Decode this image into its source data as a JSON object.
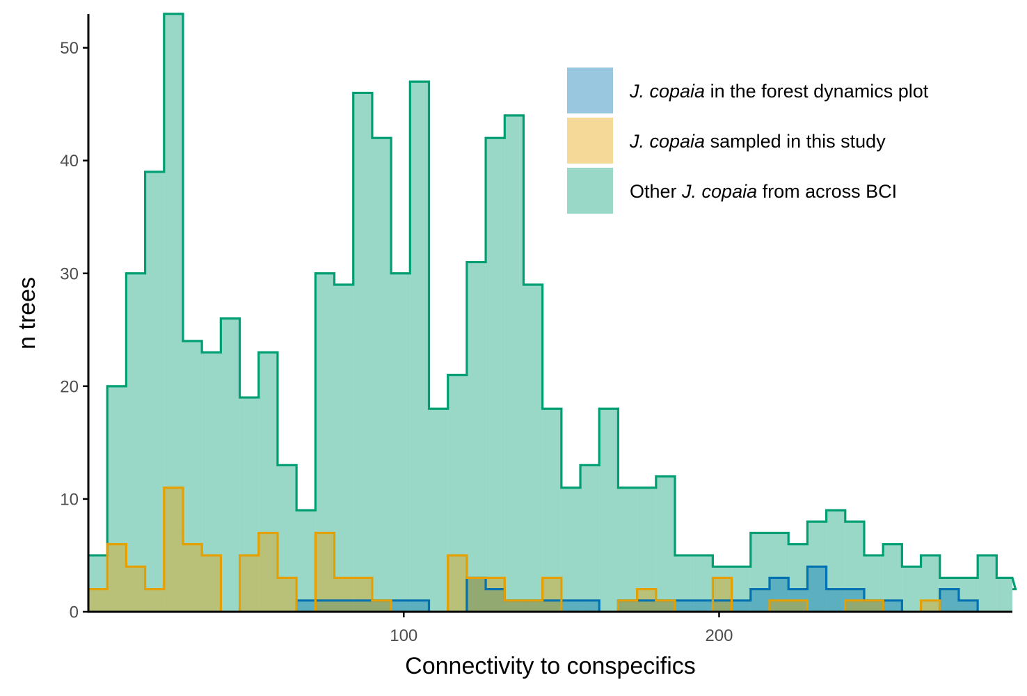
{
  "chart_data": {
    "type": "histogram",
    "xlabel": "Connectivity to conspecifics",
    "ylabel": "n trees",
    "xlim": [
      0,
      293
    ],
    "ylim": [
      0,
      53
    ],
    "bin_width": 6,
    "bin_start": 0,
    "xticks": [
      100,
      200
    ],
    "yticks": [
      0,
      10,
      20,
      30,
      40,
      50
    ],
    "grid": false,
    "legend_position": "top-right",
    "series": [
      {
        "name_italic": "J. copaia",
        "name_rest": " from across BCI",
        "name_prefix": "Other  ",
        "fill": "#009E73",
        "fill_opacity": 0.4,
        "stroke": "#009E73",
        "values": [
          5,
          20,
          30,
          39,
          53,
          24,
          23,
          26,
          19,
          23,
          13,
          9,
          30,
          29,
          46,
          42,
          30,
          47,
          18,
          21,
          31,
          42,
          44,
          29,
          18,
          11,
          13,
          18,
          11,
          11,
          12,
          5,
          5,
          4,
          4,
          7,
          7,
          6,
          8,
          9,
          8,
          5,
          6,
          4,
          5,
          3,
          3,
          5,
          3,
          2
        ]
      },
      {
        "name_italic": "J. copaia",
        "name_rest": " in the forest dynamics plot",
        "name_prefix": "",
        "fill": "#0072B2",
        "fill_opacity": 0.4,
        "stroke": "#0072B2",
        "values": [
          0,
          0,
          0,
          0,
          0,
          0,
          0,
          0,
          0,
          0,
          0,
          1,
          1,
          1,
          1,
          1,
          1,
          1,
          0,
          0,
          3,
          2,
          1,
          1,
          1,
          1,
          1,
          0,
          1,
          1,
          1,
          1,
          1,
          1,
          1,
          2,
          3,
          2,
          4,
          2,
          2,
          1,
          1,
          0,
          0,
          2,
          1,
          0,
          0,
          0
        ]
      },
      {
        "name_italic": "J. copaia",
        "name_rest": " sampled in this study",
        "name_prefix": "",
        "fill": "#E69F00",
        "fill_opacity": 0.4,
        "stroke": "#E69F00",
        "values": [
          2,
          6,
          4,
          2,
          11,
          6,
          5,
          0,
          5,
          7,
          3,
          0,
          7,
          3,
          3,
          1,
          0,
          0,
          0,
          5,
          3,
          3,
          1,
          1,
          3,
          0,
          0,
          0,
          1,
          2,
          1,
          0,
          0,
          3,
          0,
          0,
          1,
          1,
          0,
          0,
          1,
          1,
          0,
          0,
          1,
          0,
          0,
          0,
          0,
          0
        ]
      }
    ],
    "legend_order": [
      1,
      2,
      0
    ]
  }
}
